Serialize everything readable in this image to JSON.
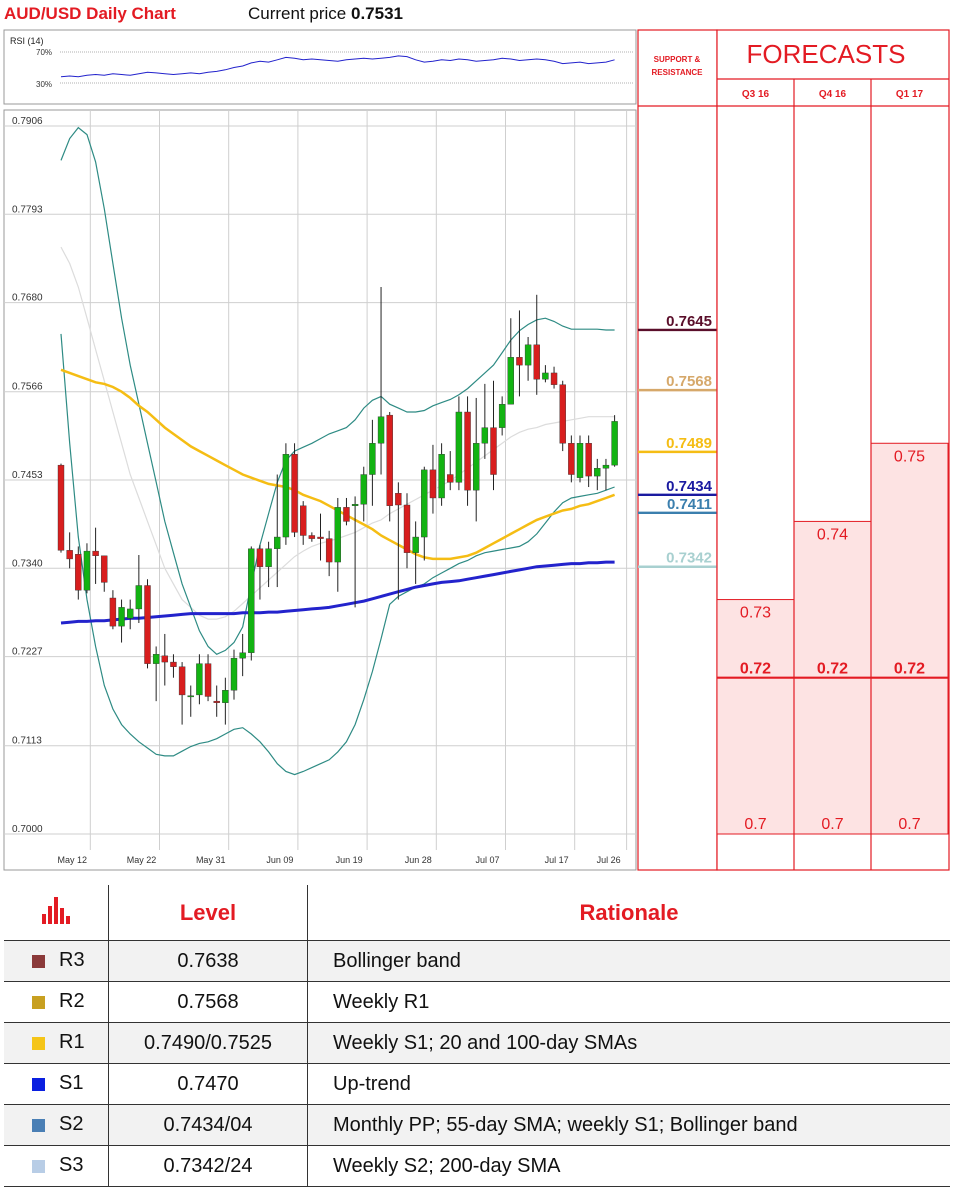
{
  "header": {
    "title": "AUD/USD Daily Chart",
    "current_price_label": "Current price",
    "current_price": "0.7531"
  },
  "colors": {
    "red": "#e31b23",
    "up": "#12b312",
    "down": "#d81e1e",
    "sma20": "#f5bd14",
    "sma200": "#2323cc",
    "boll": "#2e8b84",
    "forecast_fill": "#fde3e3"
  },
  "rsi": {
    "label": "RSI (14)",
    "levels": [
      "70%",
      "30%"
    ]
  },
  "chart_data": {
    "type": "candlestick",
    "title": "AUD/USD Daily Chart",
    "ylim": [
      0.7,
      0.7906
    ],
    "yticks": [
      "0.7906",
      "0.7793",
      "0.7680",
      "0.7566",
      "0.7453",
      "0.7340",
      "0.7227",
      "0.7113",
      "0.7000"
    ],
    "xticks": [
      "May 12",
      "May 22",
      "May 31",
      "Jun 09",
      "Jun 19",
      "Jun 28",
      "Jul 07",
      "Jul 17",
      "Jul 26"
    ],
    "candles": [
      [
        0.7472,
        0.7474,
        0.736,
        0.7363
      ],
      [
        0.7363,
        0.7386,
        0.734,
        0.7352
      ],
      [
        0.7358,
        0.7368,
        0.73,
        0.7312
      ],
      [
        0.7312,
        0.7372,
        0.7308,
        0.7362
      ],
      [
        0.7362,
        0.7392,
        0.732,
        0.7356
      ],
      [
        0.7356,
        0.7356,
        0.731,
        0.7322
      ],
      [
        0.7302,
        0.7312,
        0.7262,
        0.7266
      ],
      [
        0.7266,
        0.73,
        0.7245,
        0.729
      ],
      [
        0.7276,
        0.73,
        0.7262,
        0.7288
      ],
      [
        0.7288,
        0.7357,
        0.727,
        0.7318
      ],
      [
        0.7318,
        0.7326,
        0.7212,
        0.7218
      ],
      [
        0.7218,
        0.724,
        0.717,
        0.723
      ],
      [
        0.7228,
        0.7256,
        0.719,
        0.722
      ],
      [
        0.722,
        0.723,
        0.72,
        0.7214
      ],
      [
        0.7214,
        0.722,
        0.714,
        0.7178
      ],
      [
        0.7176,
        0.719,
        0.715,
        0.7177
      ],
      [
        0.7178,
        0.723,
        0.7166,
        0.7218
      ],
      [
        0.7218,
        0.723,
        0.717,
        0.7176
      ],
      [
        0.717,
        0.719,
        0.715,
        0.7168
      ],
      [
        0.7168,
        0.72,
        0.714,
        0.7184
      ],
      [
        0.7184,
        0.7236,
        0.7172,
        0.7225
      ],
      [
        0.7225,
        0.7256,
        0.7202,
        0.7232
      ],
      [
        0.7232,
        0.7368,
        0.7222,
        0.7365
      ],
      [
        0.7365,
        0.737,
        0.73,
        0.7342
      ],
      [
        0.7342,
        0.7374,
        0.7316,
        0.7365
      ],
      [
        0.7365,
        0.746,
        0.7316,
        0.738
      ],
      [
        0.738,
        0.75,
        0.737,
        0.7486
      ],
      [
        0.7486,
        0.75,
        0.738,
        0.7386
      ],
      [
        0.742,
        0.7426,
        0.737,
        0.7382
      ],
      [
        0.7382,
        0.7386,
        0.7374,
        0.7378
      ],
      [
        0.738,
        0.741,
        0.735,
        0.7378
      ],
      [
        0.7378,
        0.7388,
        0.733,
        0.7348
      ],
      [
        0.7348,
        0.743,
        0.731,
        0.7418
      ],
      [
        0.7418,
        0.743,
        0.7395,
        0.74
      ],
      [
        0.742,
        0.7432,
        0.729,
        0.7422
      ],
      [
        0.7422,
        0.747,
        0.74,
        0.746
      ],
      [
        0.746,
        0.753,
        0.742,
        0.75
      ],
      [
        0.75,
        0.77,
        0.746,
        0.7534
      ],
      [
        0.7536,
        0.754,
        0.74,
        0.742
      ],
      [
        0.7436,
        0.745,
        0.73,
        0.7421
      ],
      [
        0.7421,
        0.7436,
        0.734,
        0.736
      ],
      [
        0.736,
        0.74,
        0.732,
        0.738
      ],
      [
        0.738,
        0.747,
        0.735,
        0.7466
      ],
      [
        0.7466,
        0.7498,
        0.741,
        0.743
      ],
      [
        0.743,
        0.75,
        0.742,
        0.7486
      ],
      [
        0.746,
        0.749,
        0.744,
        0.745
      ],
      [
        0.745,
        0.756,
        0.744,
        0.754
      ],
      [
        0.754,
        0.756,
        0.742,
        0.744
      ],
      [
        0.744,
        0.7558,
        0.74,
        0.75
      ],
      [
        0.75,
        0.7576,
        0.748,
        0.752
      ],
      [
        0.752,
        0.758,
        0.744,
        0.746
      ],
      [
        0.752,
        0.756,
        0.751,
        0.755
      ],
      [
        0.755,
        0.766,
        0.755,
        0.761
      ],
      [
        0.761,
        0.767,
        0.756,
        0.76
      ],
      [
        0.76,
        0.7636,
        0.758,
        0.7626
      ],
      [
        0.7626,
        0.769,
        0.7562,
        0.7582
      ],
      [
        0.7582,
        0.76,
        0.7578,
        0.759
      ],
      [
        0.759,
        0.7598,
        0.757,
        0.7575
      ],
      [
        0.7575,
        0.758,
        0.749,
        0.75
      ],
      [
        0.75,
        0.751,
        0.745,
        0.746
      ],
      [
        0.7456,
        0.751,
        0.745,
        0.75
      ],
      [
        0.75,
        0.751,
        0.7444,
        0.7458
      ],
      [
        0.7458,
        0.748,
        0.744,
        0.7468
      ],
      [
        0.7468,
        0.748,
        0.744,
        0.7472
      ],
      [
        0.7472,
        0.7536,
        0.747,
        0.7528
      ]
    ],
    "sma20": [
      0.7594,
      0.759,
      0.7586,
      0.7582,
      0.7578,
      0.7576,
      0.7572,
      0.7566,
      0.7558,
      0.7548,
      0.754,
      0.753,
      0.752,
      0.7512,
      0.7504,
      0.7496,
      0.749,
      0.7484,
      0.7478,
      0.7472,
      0.7466,
      0.746,
      0.7456,
      0.7452,
      0.7448,
      0.7446,
      0.7444,
      0.744,
      0.7434,
      0.743,
      0.7426,
      0.742,
      0.7414,
      0.7408,
      0.7402,
      0.7396,
      0.739,
      0.7382,
      0.7376,
      0.737,
      0.7364,
      0.7358,
      0.7354,
      0.7352,
      0.7352,
      0.7352,
      0.7354,
      0.7356,
      0.736,
      0.7366,
      0.7372,
      0.7378,
      0.7384,
      0.739,
      0.7396,
      0.7402,
      0.7406,
      0.741,
      0.7414,
      0.7416,
      0.742,
      0.7422,
      0.7426,
      0.743,
      0.7434
    ],
    "sma200": [
      0.727,
      0.7271,
      0.7272,
      0.7272,
      0.7273,
      0.7273,
      0.7274,
      0.7275,
      0.7276,
      0.7276,
      0.7277,
      0.7278,
      0.7279,
      0.728,
      0.7281,
      0.7282,
      0.7282,
      0.7282,
      0.7282,
      0.7282,
      0.7282,
      0.7283,
      0.7283,
      0.7283,
      0.7284,
      0.7284,
      0.7285,
      0.7286,
      0.7287,
      0.7288,
      0.7289,
      0.729,
      0.7292,
      0.7294,
      0.7296,
      0.7298,
      0.7301,
      0.7304,
      0.7307,
      0.731,
      0.7313,
      0.7316,
      0.7318,
      0.732,
      0.7322,
      0.7323,
      0.7324,
      0.7326,
      0.7328,
      0.733,
      0.7332,
      0.7334,
      0.7336,
      0.7338,
      0.734,
      0.7342,
      0.7343,
      0.7344,
      0.7345,
      0.7346,
      0.7346,
      0.7347,
      0.7347,
      0.7348,
      0.7348
    ],
    "bollinger_upper": [
      0.7862,
      0.789,
      0.7904,
      0.7895,
      0.786,
      0.78,
      0.773,
      0.766,
      0.76,
      0.755,
      0.75,
      0.745,
      0.74,
      0.736,
      0.732,
      0.729,
      0.726,
      0.724,
      0.723,
      0.7235,
      0.7245,
      0.7265,
      0.732,
      0.737,
      0.741,
      0.745,
      0.7478,
      0.749,
      0.7495,
      0.75,
      0.7506,
      0.7512,
      0.7516,
      0.752,
      0.753,
      0.7545,
      0.7555,
      0.756,
      0.755,
      0.7545,
      0.754,
      0.754,
      0.7542,
      0.7548,
      0.7552,
      0.7556,
      0.7562,
      0.757,
      0.758,
      0.759,
      0.76,
      0.7616,
      0.7632,
      0.7644,
      0.7652,
      0.7658,
      0.766,
      0.7656,
      0.765,
      0.7646,
      0.7646,
      0.7646,
      0.7646,
      0.7645,
      0.7645
    ],
    "bollinger_lower": [
      0.764,
      0.75,
      0.738,
      0.73,
      0.724,
      0.719,
      0.716,
      0.714,
      0.7128,
      0.7118,
      0.711,
      0.7102,
      0.71,
      0.71,
      0.7106,
      0.7112,
      0.7116,
      0.7118,
      0.7122,
      0.7128,
      0.7134,
      0.7136,
      0.7128,
      0.7118,
      0.7105,
      0.709,
      0.708,
      0.7076,
      0.708,
      0.7085,
      0.709,
      0.7095,
      0.7105,
      0.7118,
      0.714,
      0.7172,
      0.7208,
      0.725,
      0.7294,
      0.7304,
      0.731,
      0.7316,
      0.732,
      0.7328,
      0.7334,
      0.734,
      0.7346,
      0.735,
      0.7356,
      0.736,
      0.7362,
      0.7364,
      0.7366,
      0.7368,
      0.7374,
      0.7384,
      0.7398,
      0.7412,
      0.7424,
      0.743,
      0.7432,
      0.7434,
      0.7436,
      0.744,
      0.7444
    ],
    "bollinger_mid": [
      0.7751,
      0.773,
      0.77,
      0.766,
      0.762,
      0.758,
      0.754,
      0.75,
      0.746,
      0.743,
      0.74,
      0.737,
      0.734,
      0.732,
      0.73,
      0.729,
      0.728,
      0.7275,
      0.7275,
      0.7278,
      0.7285,
      0.7295,
      0.7305,
      0.7315,
      0.7325,
      0.7335,
      0.7345,
      0.7355,
      0.7362,
      0.7368,
      0.7372,
      0.7375,
      0.7378,
      0.7382,
      0.7386,
      0.7392,
      0.7398,
      0.7402,
      0.741,
      0.7416,
      0.7422,
      0.7428,
      0.7434,
      0.744,
      0.7446,
      0.7452,
      0.746,
      0.7468,
      0.7476,
      0.7484,
      0.7492,
      0.75,
      0.7508,
      0.7514,
      0.7518,
      0.752,
      0.7524,
      0.7526,
      0.7528,
      0.753,
      0.7532,
      0.7534,
      0.7534,
      0.7534,
      0.7534
    ],
    "rsi_values": [
      38,
      39,
      38,
      40,
      41,
      40,
      42,
      41,
      40,
      42,
      44,
      43,
      42,
      41,
      42,
      43,
      42,
      44,
      45,
      47,
      50,
      52,
      56,
      58,
      57,
      60,
      63,
      62,
      60,
      61,
      60,
      59,
      58,
      60,
      61,
      62,
      61,
      62,
      63,
      65,
      64,
      60,
      57,
      58,
      60,
      59,
      61,
      60,
      58,
      59,
      60,
      62,
      61,
      59,
      60,
      61,
      60,
      58,
      55,
      56,
      57,
      55,
      56,
      57,
      60
    ]
  },
  "levels_on_chart": [
    {
      "value": "0.7645",
      "color": "#5a0e2a",
      "text_color": "#5a0e2a"
    },
    {
      "value": "0.7568",
      "color": "#d6a86a",
      "text_color": "#d6a86a"
    },
    {
      "value": "0.7489",
      "color": "#f5bd14",
      "text_color": "#f5bd14"
    },
    {
      "value": "0.7434",
      "color": "#1a1aa0",
      "text_color": "#1a1aa0"
    },
    {
      "value": "0.7411",
      "color": "#3b7fae",
      "text_color": "#3b7fae"
    },
    {
      "value": "0.7342",
      "color": "#a8d0d0",
      "text_color": "#a8d0d0"
    }
  ],
  "support_resistance_header": "SUPPORT & RESISTANCE",
  "forecasts": {
    "title": "FORECASTS",
    "columns": [
      {
        "label": "Q3 16",
        "high": "0.73",
        "mid": "0.72",
        "low": "0.7"
      },
      {
        "label": "Q4 16",
        "high": "0.74",
        "mid": "0.72",
        "low": "0.7"
      },
      {
        "label": "Q1 17",
        "high": "0.75",
        "mid": "0.72",
        "low": "0.7"
      }
    ]
  },
  "levels_table": {
    "headers": [
      "Level",
      "Rationale"
    ],
    "rows": [
      {
        "name": "R3",
        "level": "0.7638",
        "rationale": "Bollinger band",
        "color": "#8b3a3a"
      },
      {
        "name": "R2",
        "level": "0.7568",
        "rationale": "Weekly R1",
        "color": "#c8a020"
      },
      {
        "name": "R1",
        "level": "0.7490/0.7525",
        "rationale": "Weekly S1; 20 and 100-day SMAs",
        "color": "#f5c518"
      },
      {
        "name": "S1",
        "level": "0.7470",
        "rationale": "Up-trend",
        "color": "#0a1fe0"
      },
      {
        "name": "S2",
        "level": "0.7434/04",
        "rationale": "Monthly PP; 55-day SMA; weekly S1; Bollinger band",
        "color": "#4a7fb5"
      },
      {
        "name": "S3",
        "level": "0.7342/24",
        "rationale": "Weekly S2; 200-day SMA",
        "color": "#b8cde6"
      }
    ]
  }
}
